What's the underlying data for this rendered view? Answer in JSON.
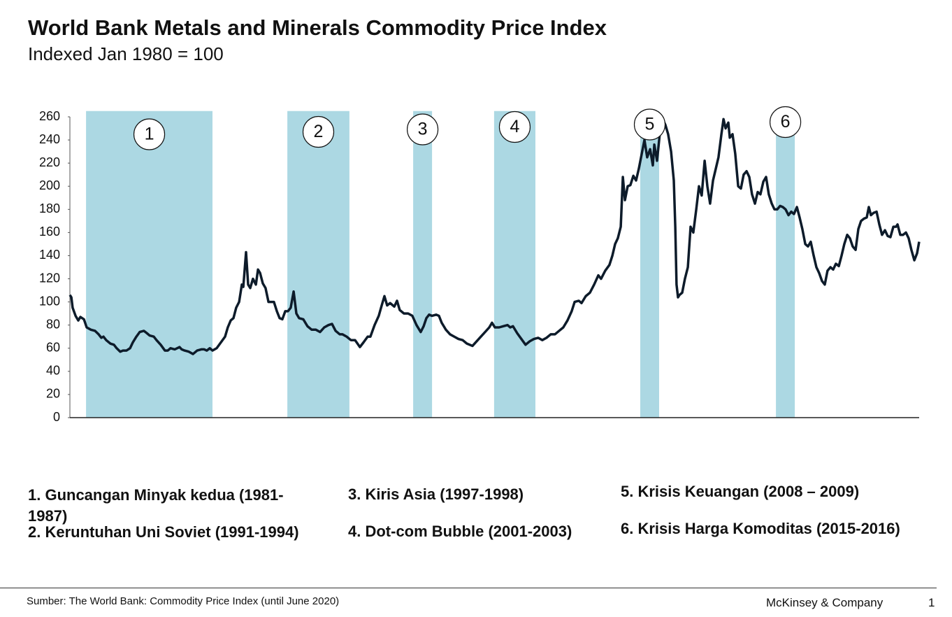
{
  "chart_data": {
    "type": "line",
    "title": "World Bank Metals and Minerals Commodity Price Index",
    "subtitle": "Indexed Jan 1980 = 100",
    "color": "#0d1b2a",
    "shade_color": "#acd8e3",
    "xlim": [
      1980,
      2020.5
    ],
    "ylim": [
      0,
      265
    ],
    "yticks": [
      0,
      20,
      40,
      60,
      80,
      100,
      120,
      140,
      160,
      180,
      200,
      220,
      240,
      260
    ],
    "shaded_regions": [
      {
        "label": "1",
        "x": [
          1980.77,
          1986.8
        ]
      },
      {
        "label": "2",
        "x": [
          1990.37,
          1993.33
        ]
      },
      {
        "label": "3",
        "x": [
          1996.37,
          1997.27
        ]
      },
      {
        "label": "4",
        "x": [
          2000.23,
          2002.2
        ]
      },
      {
        "label": "5",
        "x": [
          2007.2,
          2008.1
        ]
      },
      {
        "label": "6",
        "x": [
          2013.67,
          2014.57
        ]
      }
    ],
    "x": [
      1980.0,
      1980.07,
      1980.13,
      1980.27,
      1980.4,
      1980.5,
      1980.67,
      1980.8,
      1981.0,
      1981.2,
      1981.37,
      1981.5,
      1981.6,
      1981.73,
      1981.93,
      1982.1,
      1982.23,
      1982.4,
      1982.53,
      1982.7,
      1982.87,
      1983.0,
      1983.17,
      1983.33,
      1983.53,
      1983.67,
      1983.8,
      1984.0,
      1984.13,
      1984.33,
      1984.53,
      1984.67,
      1984.8,
      1985.0,
      1985.23,
      1985.33,
      1985.47,
      1985.67,
      1985.87,
      1986.07,
      1986.27,
      1986.4,
      1986.53,
      1986.67,
      1986.8,
      1987.0,
      1987.2,
      1987.4,
      1987.53,
      1987.67,
      1987.8,
      1987.93,
      1988.07,
      1988.2,
      1988.27,
      1988.4,
      1988.5,
      1988.6,
      1988.73,
      1988.87,
      1988.97,
      1989.07,
      1989.2,
      1989.33,
      1989.47,
      1989.6,
      1989.73,
      1989.87,
      1990.0,
      1990.13,
      1990.27,
      1990.4,
      1990.53,
      1990.67,
      1990.8,
      1990.93,
      1991.13,
      1991.33,
      1991.53,
      1991.73,
      1991.93,
      1992.13,
      1992.33,
      1992.5,
      1992.67,
      1992.87,
      1993.0,
      1993.2,
      1993.4,
      1993.6,
      1993.83,
      1994.0,
      1994.2,
      1994.33,
      1994.53,
      1994.73,
      1994.87,
      1995.0,
      1995.13,
      1995.27,
      1995.47,
      1995.6,
      1995.73,
      1995.93,
      1996.13,
      1996.33,
      1996.53,
      1996.73,
      1996.87,
      1997.0,
      1997.13,
      1997.27,
      1997.47,
      1997.6,
      1997.73,
      1997.93,
      1998.13,
      1998.33,
      1998.53,
      1998.73,
      1998.93,
      1999.2,
      1999.4,
      1999.6,
      1999.8,
      2000.0,
      2000.13,
      2000.27,
      2000.47,
      2000.67,
      2000.87,
      2001.0,
      2001.13,
      2001.33,
      2001.53,
      2001.73,
      2001.93,
      2002.13,
      2002.33,
      2002.53,
      2002.73,
      2002.93,
      2003.13,
      2003.33,
      2003.53,
      2003.73,
      2003.93,
      2004.07,
      2004.27,
      2004.4,
      2004.6,
      2004.8,
      2005.0,
      2005.2,
      2005.33,
      2005.53,
      2005.73,
      2005.87,
      2006.0,
      2006.13,
      2006.27,
      2006.37,
      2006.47,
      2006.6,
      2006.73,
      2006.87,
      2007.0,
      2007.13,
      2007.27,
      2007.4,
      2007.53,
      2007.67,
      2007.8,
      2007.87,
      2008.0,
      2008.13,
      2008.27,
      2008.4,
      2008.53,
      2008.67,
      2008.8,
      2008.87,
      2008.93,
      2009.0,
      2009.07,
      2009.2,
      2009.33,
      2009.47,
      2009.6,
      2009.73,
      2009.87,
      2010.0,
      2010.13,
      2010.27,
      2010.4,
      2010.53,
      2010.67,
      2010.8,
      2010.93,
      2011.07,
      2011.17,
      2011.27,
      2011.4,
      2011.47,
      2011.6,
      2011.73,
      2011.87,
      2012.0,
      2012.13,
      2012.27,
      2012.4,
      2012.53,
      2012.67,
      2012.8,
      2012.93,
      2013.07,
      2013.2,
      2013.33,
      2013.47,
      2013.6,
      2013.73,
      2013.87,
      2014.0,
      2014.13,
      2014.27,
      2014.4,
      2014.53,
      2014.67,
      2014.8,
      2014.93,
      2015.07,
      2015.2,
      2015.33,
      2015.47,
      2015.6,
      2015.73,
      2015.87,
      2016.0,
      2016.13,
      2016.27,
      2016.4,
      2016.53,
      2016.67,
      2016.8,
      2016.93,
      2017.07,
      2017.2,
      2017.33,
      2017.47,
      2017.6,
      2017.73,
      2017.87,
      2018.0,
      2018.1,
      2018.2,
      2018.33,
      2018.47,
      2018.6,
      2018.73,
      2018.87,
      2019.0,
      2019.13,
      2019.27,
      2019.4,
      2019.47,
      2019.6,
      2019.73,
      2019.87,
      2020.0,
      2020.13,
      2020.27,
      2020.4,
      2020.5
    ],
    "values": [
      106,
      104,
      95,
      88,
      84,
      87,
      85,
      78,
      76,
      75,
      72,
      69,
      70,
      67,
      64,
      63,
      60,
      57,
      58,
      58,
      60,
      65,
      70,
      74,
      75,
      73,
      71,
      70,
      67,
      63,
      58,
      58,
      60,
      59,
      61,
      59,
      58,
      57,
      55,
      58,
      59,
      59,
      58,
      60,
      58,
      60,
      65,
      70,
      78,
      84,
      86,
      95,
      100,
      115,
      113,
      143,
      115,
      112,
      120,
      115,
      128,
      125,
      116,
      112,
      100,
      100,
      100,
      92,
      86,
      85,
      92,
      92,
      95,
      109,
      90,
      86,
      85,
      79,
      76,
      76,
      74,
      78,
      80,
      81,
      75,
      72,
      72,
      70,
      67,
      67,
      61,
      65,
      70,
      70,
      80,
      88,
      97,
      105,
      97,
      99,
      96,
      101,
      93,
      90,
      90,
      88,
      80,
      74,
      79,
      86,
      89,
      88,
      89,
      88,
      82,
      76,
      72,
      70,
      68,
      67,
      64,
      62,
      66,
      70,
      74,
      78,
      82,
      78,
      78,
      79,
      80,
      78,
      79,
      73,
      68,
      63,
      66,
      68,
      69,
      67,
      69,
      72,
      72,
      75,
      78,
      84,
      92,
      100,
      101,
      99,
      105,
      108,
      115,
      123,
      120,
      127,
      132,
      140,
      150,
      155,
      165,
      208,
      188,
      200,
      201,
      209,
      205,
      215,
      228,
      240,
      225,
      232,
      218,
      236,
      222,
      245,
      258,
      253,
      245,
      230,
      205,
      165,
      115,
      104,
      106,
      108,
      120,
      130,
      165,
      160,
      180,
      200,
      192,
      222,
      200,
      185,
      205,
      215,
      225,
      245,
      258,
      250,
      255,
      242,
      245,
      228,
      200,
      198,
      210,
      213,
      208,
      193,
      185,
      195,
      193,
      204,
      208,
      193,
      185,
      180,
      180,
      183,
      182,
      180,
      175,
      178,
      176,
      182,
      173,
      163,
      150,
      148,
      152,
      140,
      130,
      125,
      118,
      115,
      127,
      130,
      128,
      133,
      131,
      140,
      150,
      158,
      155,
      148,
      145,
      163,
      170,
      172,
      173,
      182,
      175,
      177,
      178,
      167,
      158,
      162,
      157,
      156,
      165,
      165,
      167,
      158,
      158,
      160,
      155,
      145,
      136,
      142,
      152
    ]
  },
  "notes": [
    "1. Guncangan Minyak kedua (1981-1987)",
    "2. Keruntuhan Uni Soviet (1991-1994)",
    "3. Kiris Asia (1997-1998)",
    "4. Dot-com Bubble (2001-2003)",
    "5. Krisis Keuangan (2008 – 2009)",
    "6. Krisis Harga Komoditas (2015-2016)"
  ],
  "footer": {
    "source": "Sumber: The World Bank: Commodity Price Index (until June 2020)",
    "brand": "McKinsey & Company",
    "page": "1"
  }
}
